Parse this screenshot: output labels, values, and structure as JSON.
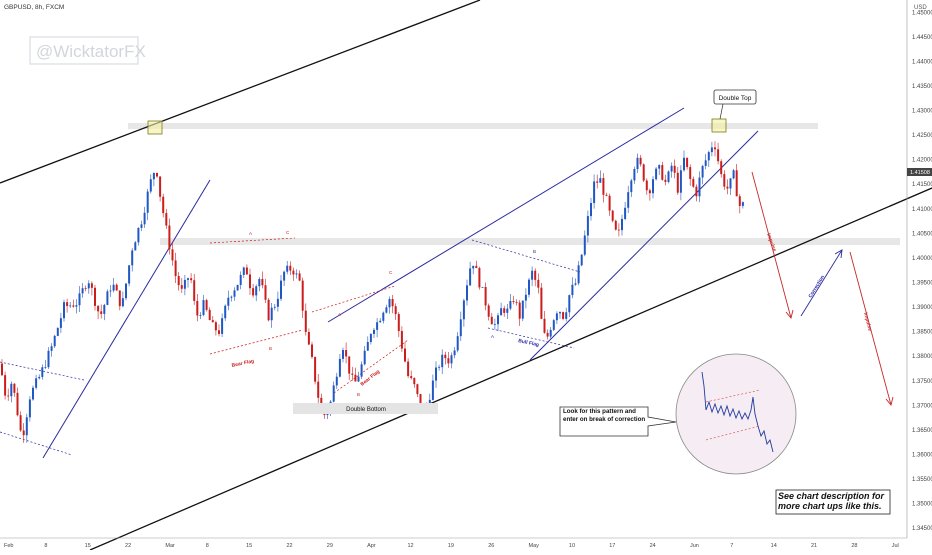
{
  "symbol_label": "GBPUSD, 8h, FXCM",
  "currency_label": "USD",
  "watermark": "@WicktatorFX",
  "chart_data": {
    "type": "candlestick",
    "title": "GBPUSD, 8h, FXCM",
    "x_axis_labels": [
      "Feb",
      "8",
      "15",
      "22",
      "Mar",
      "8",
      "15",
      "22",
      "29",
      "Apr",
      "12",
      "19",
      "26",
      "May",
      "10",
      "17",
      "24",
      "Jun",
      "7",
      "14",
      "21",
      "28",
      "Jul"
    ],
    "y_axis_labels": [
      "1.45000",
      "1.44500",
      "1.44000",
      "1.43500",
      "1.43000",
      "1.42500",
      "1.42000",
      "1.41500",
      "1.41000",
      "1.40500",
      "1.40000",
      "1.39500",
      "1.39000",
      "1.38500",
      "1.38000",
      "1.37500",
      "1.37000",
      "1.36500",
      "1.36000",
      "1.35500",
      "1.35000",
      "1.34500"
    ],
    "ylim": [
      1.343,
      1.4525
    ],
    "current_price": "1.41508",
    "colors": {
      "up": "#2157c4",
      "down": "#cc1d1d",
      "trend": "#2a2aa0",
      "channel": "#111111",
      "arrow": "#c62828"
    },
    "anchors": [
      [
        0,
        1.3785
      ],
      [
        6,
        1.3715
      ],
      [
        12,
        1.375
      ],
      [
        18,
        1.368
      ],
      [
        22,
        1.363
      ],
      [
        30,
        1.372
      ],
      [
        40,
        1.376
      ],
      [
        52,
        1.382
      ],
      [
        64,
        1.39
      ],
      [
        78,
        1.391
      ],
      [
        88,
        1.396
      ],
      [
        100,
        1.388
      ],
      [
        112,
        1.395
      ],
      [
        122,
        1.39
      ],
      [
        132,
        1.402
      ],
      [
        142,
        1.408
      ],
      [
        150,
        1.415
      ],
      [
        156,
        1.419
      ],
      [
        160,
        1.413
      ],
      [
        166,
        1.406
      ],
      [
        172,
        1.4
      ],
      [
        176,
        1.396
      ],
      [
        182,
        1.393
      ],
      [
        190,
        1.397
      ],
      [
        196,
        1.388
      ],
      [
        204,
        1.3905
      ],
      [
        212,
        1.386
      ],
      [
        220,
        1.385
      ],
      [
        228,
        1.392
      ],
      [
        238,
        1.395
      ],
      [
        246,
        1.398
      ],
      [
        252,
        1.393
      ],
      [
        260,
        1.396
      ],
      [
        268,
        1.388
      ],
      [
        276,
        1.391
      ],
      [
        284,
        1.397
      ],
      [
        292,
        1.398
      ],
      [
        300,
        1.395
      ],
      [
        306,
        1.384
      ],
      [
        312,
        1.379
      ],
      [
        318,
        1.372
      ],
      [
        324,
        1.368
      ],
      [
        330,
        1.37
      ],
      [
        336,
        1.376
      ],
      [
        342,
        1.383
      ],
      [
        348,
        1.378
      ],
      [
        354,
        1.374
      ],
      [
        360,
        1.377
      ],
      [
        366,
        1.381
      ],
      [
        372,
        1.386
      ],
      [
        378,
        1.387
      ],
      [
        384,
        1.39
      ],
      [
        390,
        1.392
      ],
      [
        396,
        1.388
      ],
      [
        402,
        1.382
      ],
      [
        408,
        1.376
      ],
      [
        414,
        1.374
      ],
      [
        420,
        1.37
      ],
      [
        426,
        1.369
      ],
      [
        432,
        1.374
      ],
      [
        438,
        1.378
      ],
      [
        444,
        1.38
      ],
      [
        450,
        1.379
      ],
      [
        456,
        1.383
      ],
      [
        462,
        1.39
      ],
      [
        468,
        1.396
      ],
      [
        472,
        1.4
      ],
      [
        478,
        1.396
      ],
      [
        484,
        1.392
      ],
      [
        490,
        1.388
      ],
      [
        496,
        1.386
      ],
      [
        502,
        1.39
      ],
      [
        508,
        1.389
      ],
      [
        514,
        1.392
      ],
      [
        520,
        1.388
      ],
      [
        526,
        1.393
      ],
      [
        532,
        1.397
      ],
      [
        538,
        1.394
      ],
      [
        542,
        1.386
      ],
      [
        546,
        1.383
      ],
      [
        552,
        1.387
      ],
      [
        558,
        1.39
      ],
      [
        564,
        1.388
      ],
      [
        570,
        1.393
      ],
      [
        576,
        1.395
      ],
      [
        582,
        1.401
      ],
      [
        588,
        1.408
      ],
      [
        594,
        1.415
      ],
      [
        600,
        1.416
      ],
      [
        606,
        1.412
      ],
      [
        612,
        1.407
      ],
      [
        618,
        1.404
      ],
      [
        624,
        1.41
      ],
      [
        630,
        1.416
      ],
      [
        636,
        1.42
      ],
      [
        642,
        1.418
      ],
      [
        648,
        1.413
      ],
      [
        654,
        1.417
      ],
      [
        660,
        1.418
      ],
      [
        666,
        1.415
      ],
      [
        672,
        1.419
      ],
      [
        678,
        1.414
      ],
      [
        684,
        1.42
      ],
      [
        690,
        1.416
      ],
      [
        696,
        1.413
      ],
      [
        702,
        1.418
      ],
      [
        708,
        1.421
      ],
      [
        714,
        1.424
      ],
      [
        718,
        1.42
      ],
      [
        722,
        1.416
      ],
      [
        728,
        1.414
      ],
      [
        734,
        1.417
      ],
      [
        738,
        1.412
      ],
      [
        742,
        1.409
      ],
      [
        746,
        1.417
      ]
    ],
    "annotations": {
      "double_top": "Double Top",
      "double_bottom": "Double Bottom",
      "bear_flag_1": "Bear Flag",
      "bear_flag_2": "Bear Flag",
      "bull_flag": "Bull Flag",
      "impulse_1": "Impulse",
      "correction": "Correction",
      "impulse_2": "Impulse",
      "pattern_note": "Look for this pattern and enter on break of correction",
      "description_note": "See chart description for more chart ups like this.",
      "wave_labels": [
        "A",
        "C",
        "B",
        "A",
        "C",
        "B",
        "A",
        "B"
      ]
    }
  }
}
